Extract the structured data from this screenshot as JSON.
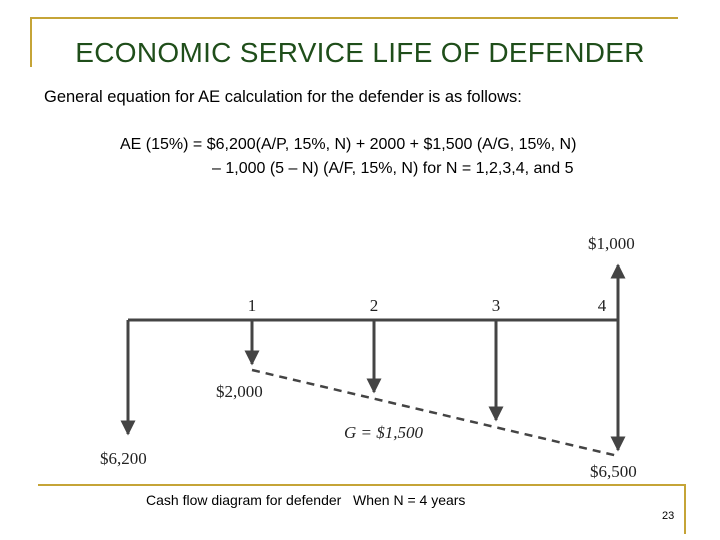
{
  "slide": {
    "title": "ECONOMIC SERVICE LIFE OF DEFENDER",
    "subtitle": "General equation for AE calculation for the defender is as follows:",
    "equation_line1": "AE (15%) = $6,200(A/P, 15%, N) + 2000 + $1,500 (A/G, 15%, N)",
    "equation_line2": "– 1,000 (5 – N) (A/F, 15%, N) for N = 1,2,3,4, and 5",
    "caption": "Cash flow diagram for defender   When N = 4 years",
    "page_number": "23"
  },
  "diagram": {
    "period_labels": [
      "1",
      "2",
      "3",
      "4"
    ],
    "initial_cost_label": "$6,200",
    "first_year_cost_label": "$2,000",
    "gradient_label": "G  =  $1,500",
    "final_cost_label": "$6,500",
    "salvage_label": "$1,000"
  },
  "colors": {
    "title": "#1f4e1a",
    "frame": "#c5a437",
    "diagram": "#444444"
  }
}
